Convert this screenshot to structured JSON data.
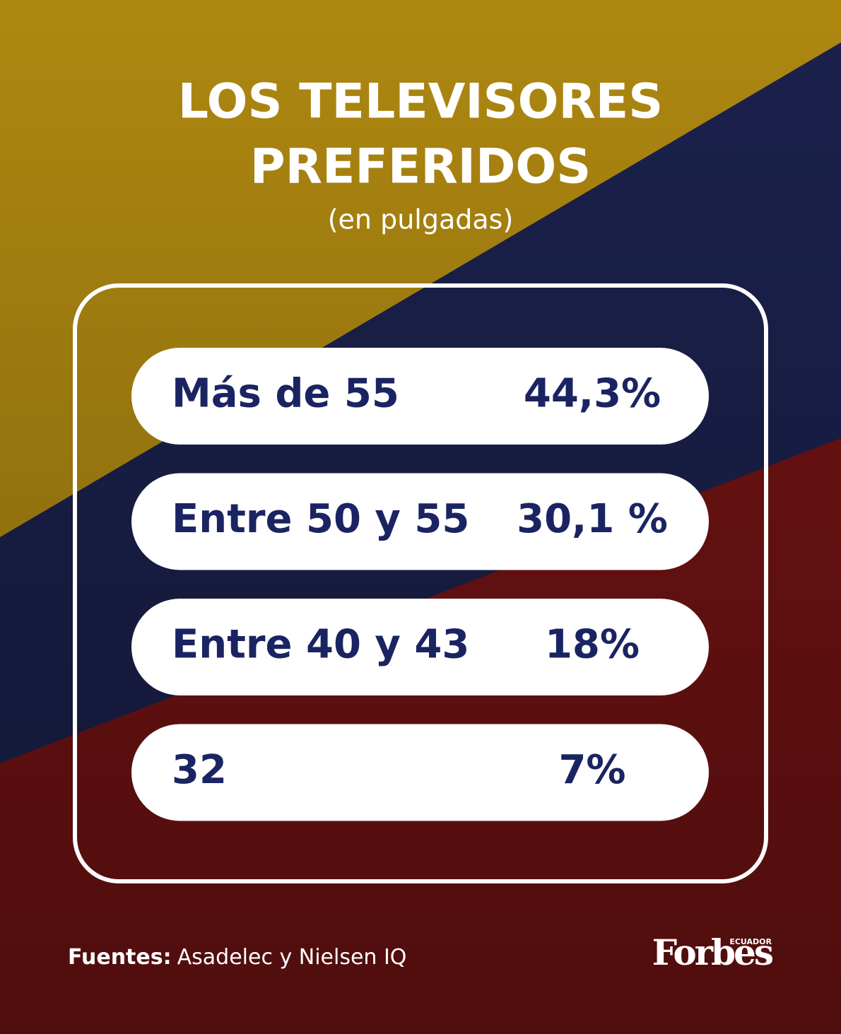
{
  "header": {
    "title_lines": [
      "LOS TELEVISORES",
      "PREFERIDOS"
    ],
    "subtitle": "(en pulgadas)"
  },
  "table": {
    "rows": [
      [
        "Más de 55",
        "44,3%"
      ],
      [
        "Entre 50 y 55",
        "30,1 %"
      ],
      [
        "Entre 40 y 43",
        "18%"
      ],
      [
        "32",
        "7%"
      ]
    ]
  },
  "footer": {
    "source_label": "Fuentes:",
    "source": "Asadelec y Nielsen IQ",
    "logo": "Forbes",
    "logo_edition": "ECUADOR"
  }
}
